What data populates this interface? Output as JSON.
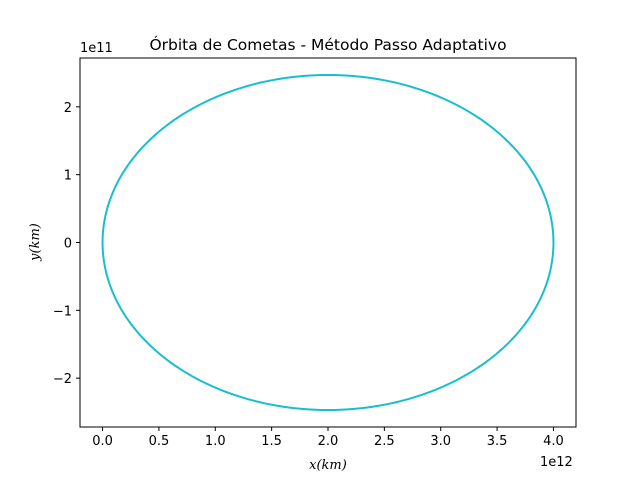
{
  "chart_data": {
    "type": "line",
    "title": "Órbita de Cometas - Método Passo Adaptativo",
    "xlabel": "x(km)",
    "ylabel": "y(km)",
    "x_offset_label": "1e12",
    "y_offset_label": "1e11",
    "xlim": [
      -200000000000.0,
      4200000000000.0
    ],
    "ylim": [
      -272000000000.0,
      272000000000.0
    ],
    "x_ticks": [
      0.0,
      500000000000.0,
      1000000000000.0,
      1500000000000.0,
      2000000000000.0,
      2500000000000.0,
      3000000000000.0,
      3500000000000.0,
      4000000000000.0
    ],
    "x_tick_labels": [
      "0.0",
      "0.5",
      "1.0",
      "1.5",
      "2.0",
      "2.5",
      "3.0",
      "3.5",
      "4.0"
    ],
    "y_ticks": [
      -200000000000.0,
      -100000000000.0,
      0,
      100000000000.0,
      200000000000.0
    ],
    "y_tick_labels": [
      "−2",
      "−1",
      "0",
      "1",
      "2"
    ],
    "grid": false,
    "series": [
      {
        "color": "#17becf",
        "shape": "ellipse",
        "center_x": 2000000000000.0,
        "center_y": 0,
        "semi_major_axis": 2000000000000.0,
        "semi_minor_axis": 247000000000.0
      }
    ]
  }
}
